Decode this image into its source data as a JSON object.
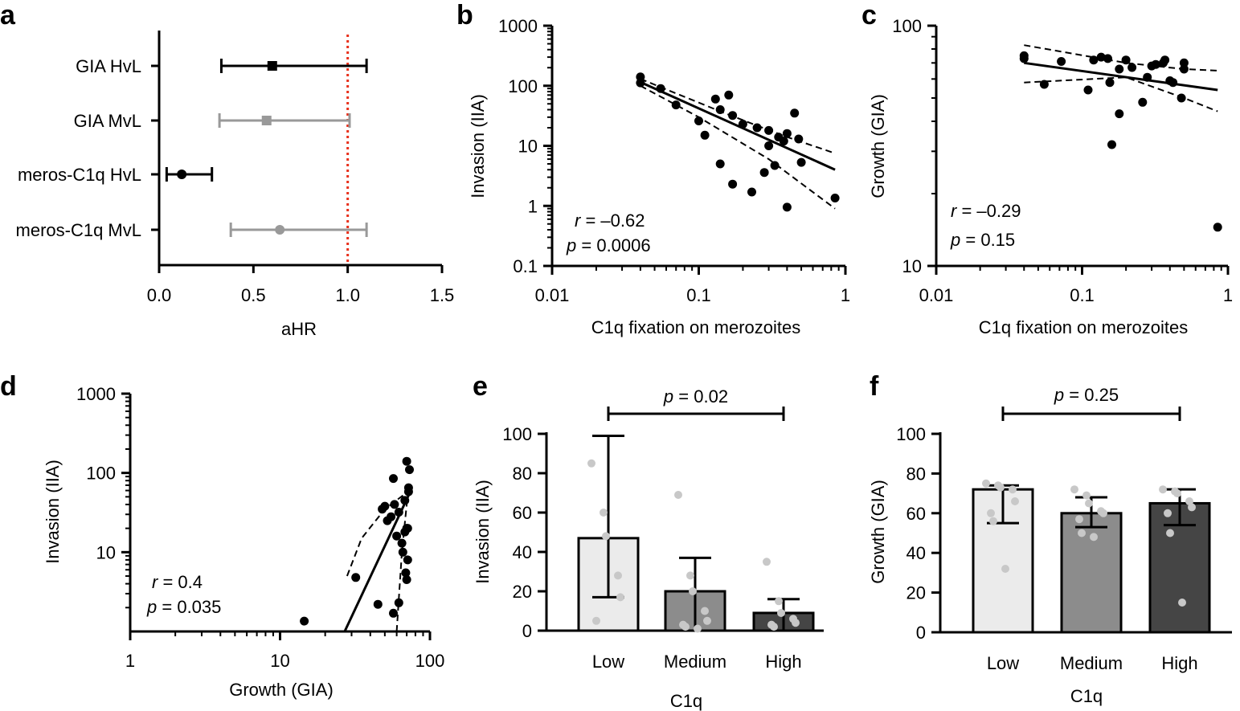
{
  "colors": {
    "black": "#000000",
    "grey": "#999999",
    "ref_line": "#e8301c",
    "bar_low": "#ebebeb",
    "bar_medium": "#8c8c8c",
    "bar_high": "#454545",
    "dot_light": "#c8c8c8"
  },
  "chart_data": [
    {
      "panel": "a",
      "type": "forest",
      "xlabel": "aHR",
      "xlim": [
        0,
        1.5
      ],
      "xticks": [
        "0.0",
        "0.5",
        "1.0",
        "1.5"
      ],
      "reference_line": 1.0,
      "rows": [
        {
          "label": "GIA HvL",
          "estimate": 0.6,
          "lower": 0.33,
          "upper": 1.1,
          "color": "black",
          "marker": "square"
        },
        {
          "label": "GIA MvL",
          "estimate": 0.57,
          "lower": 0.32,
          "upper": 1.01,
          "color": "grey",
          "marker": "square"
        },
        {
          "label": "meros-C1q HvL",
          "estimate": 0.12,
          "lower": 0.04,
          "upper": 0.28,
          "color": "black",
          "marker": "circle"
        },
        {
          "label": "meros-C1q MvL",
          "estimate": 0.64,
          "lower": 0.38,
          "upper": 1.1,
          "color": "grey",
          "marker": "circle"
        }
      ]
    },
    {
      "panel": "b",
      "type": "scatter",
      "xscale": "log",
      "yscale": "log",
      "xlabel": "C1q fixation on merozoites",
      "ylabel": "Invasion (IIA)",
      "xlim": [
        0.01,
        1
      ],
      "ylim": [
        0.1,
        1000
      ],
      "xticks": [
        {
          "v": 0.01,
          "t": "0.01"
        },
        {
          "v": 0.1,
          "t": "0.1"
        },
        {
          "v": 1,
          "t": "1"
        }
      ],
      "yticks": [
        {
          "v": 0.1,
          "t": "0.1"
        },
        {
          "v": 1,
          "t": "1"
        },
        {
          "v": 10,
          "t": "10"
        },
        {
          "v": 100,
          "t": "100"
        },
        {
          "v": 1000,
          "t": "1000"
        }
      ],
      "r_text": "–0.62",
      "p_text": "0.0006",
      "points": [
        [
          0.04,
          140
        ],
        [
          0.04,
          112
        ],
        [
          0.055,
          90
        ],
        [
          0.07,
          48
        ],
        [
          0.1,
          26
        ],
        [
          0.11,
          15
        ],
        [
          0.13,
          60
        ],
        [
          0.14,
          40
        ],
        [
          0.16,
          70
        ],
        [
          0.17,
          32
        ],
        [
          0.2,
          23
        ],
        [
          0.25,
          20
        ],
        [
          0.3,
          18
        ],
        [
          0.35,
          14
        ],
        [
          0.38,
          12
        ],
        [
          0.4,
          16
        ],
        [
          0.45,
          35
        ],
        [
          0.48,
          13
        ],
        [
          0.14,
          5
        ],
        [
          0.17,
          2.3
        ],
        [
          0.23,
          1.7
        ],
        [
          0.28,
          3.6
        ],
        [
          0.33,
          4.7
        ],
        [
          0.4,
          0.95
        ],
        [
          0.5,
          5.3
        ],
        [
          0.85,
          1.35
        ],
        [
          0.3,
          10
        ]
      ],
      "fit": [
        [
          0.04,
          115
        ],
        [
          0.85,
          4
        ]
      ],
      "ci_upper": [
        [
          0.04,
          130
        ],
        [
          0.15,
          35
        ],
        [
          0.4,
          14
        ],
        [
          0.85,
          7.5
        ]
      ],
      "ci_lower": [
        [
          0.04,
          100
        ],
        [
          0.1,
          30
        ],
        [
          0.3,
          6
        ],
        [
          0.85,
          0.9
        ]
      ]
    },
    {
      "panel": "c",
      "type": "scatter",
      "xscale": "log",
      "yscale": "log",
      "xlabel": "C1q fixation on merozoites",
      "ylabel": "Growth (GIA)",
      "xlim": [
        0.01,
        1
      ],
      "ylim": [
        10,
        100
      ],
      "xticks": [
        {
          "v": 0.01,
          "t": "0.01"
        },
        {
          "v": 0.1,
          "t": "0.1"
        },
        {
          "v": 1,
          "t": "1"
        }
      ],
      "yticks": [
        {
          "v": 10,
          "t": "10"
        },
        {
          "v": 100,
          "t": "100"
        }
      ],
      "r_text": "–0.29",
      "p_text": "0.15",
      "points": [
        [
          0.04,
          75
        ],
        [
          0.04,
          73
        ],
        [
          0.055,
          57
        ],
        [
          0.072,
          71
        ],
        [
          0.11,
          54
        ],
        [
          0.12,
          72
        ],
        [
          0.135,
          74
        ],
        [
          0.15,
          73
        ],
        [
          0.155,
          58
        ],
        [
          0.18,
          66
        ],
        [
          0.2,
          72
        ],
        [
          0.22,
          67
        ],
        [
          0.28,
          61
        ],
        [
          0.3,
          68
        ],
        [
          0.32,
          69
        ],
        [
          0.36,
          70
        ],
        [
          0.37,
          72
        ],
        [
          0.4,
          59
        ],
        [
          0.42,
          58
        ],
        [
          0.48,
          50
        ],
        [
          0.5,
          70
        ],
        [
          0.5,
          66
        ],
        [
          0.26,
          48
        ],
        [
          0.18,
          43
        ],
        [
          0.16,
          32
        ],
        [
          0.85,
          14.5
        ]
      ],
      "fit": [
        [
          0.04,
          70
        ],
        [
          0.85,
          54
        ]
      ],
      "ci_upper": [
        [
          0.04,
          83
        ],
        [
          0.2,
          70
        ],
        [
          0.5,
          66
        ],
        [
          0.85,
          65
        ]
      ],
      "ci_lower": [
        [
          0.04,
          58
        ],
        [
          0.2,
          61
        ],
        [
          0.5,
          50
        ],
        [
          0.85,
          44
        ]
      ]
    },
    {
      "panel": "d",
      "type": "scatter",
      "xscale": "log",
      "yscale": "log",
      "xlabel": "Growth (GIA)",
      "ylabel": "Invasion (IIA)",
      "xlim": [
        1,
        100
      ],
      "ylim": [
        1,
        1000
      ],
      "xticks": [
        {
          "v": 1,
          "t": "1"
        },
        {
          "v": 10,
          "t": "10"
        },
        {
          "v": 100,
          "t": "100"
        }
      ],
      "yticks": [
        {
          "v": 10,
          "t": "10"
        },
        {
          "v": 100,
          "t": "100"
        },
        {
          "v": 1000,
          "t": "1000"
        }
      ],
      "r_text": "0.4",
      "p_text": "0.035",
      "points": [
        [
          14.5,
          1.35
        ],
        [
          32,
          4.8
        ],
        [
          45,
          2.2
        ],
        [
          48,
          35
        ],
        [
          50,
          38
        ],
        [
          52,
          25
        ],
        [
          55,
          28
        ],
        [
          57,
          85
        ],
        [
          57,
          1.7
        ],
        [
          58,
          40
        ],
        [
          60,
          16
        ],
        [
          62,
          32
        ],
        [
          62,
          2.3
        ],
        [
          65,
          13
        ],
        [
          66,
          10
        ],
        [
          68,
          18
        ],
        [
          68,
          45
        ],
        [
          69,
          5.5
        ],
        [
          70,
          4.5
        ],
        [
          70,
          140
        ],
        [
          71,
          20
        ],
        [
          71,
          8
        ],
        [
          72,
          65
        ],
        [
          72,
          58
        ],
        [
          73,
          110
        ],
        [
          70,
          20
        ]
      ],
      "fit": [
        [
          27,
          1
        ],
        [
          73,
          55
        ]
      ],
      "ci_upper": [
        [
          28,
          5
        ],
        [
          35,
          15
        ],
        [
          50,
          35
        ],
        [
          73,
          60
        ]
      ],
      "ci_lower": [
        [
          60,
          1
        ],
        [
          65,
          10
        ],
        [
          70,
          40
        ],
        [
          73,
          70
        ]
      ]
    },
    {
      "panel": "e",
      "type": "bar",
      "xlabel": "C1q",
      "ylabel": "Invasion (IIA)",
      "ylim": [
        0,
        100
      ],
      "yticks": [
        "0",
        "20",
        "40",
        "60",
        "80",
        "100"
      ],
      "categories": [
        "Low",
        "Medium",
        "High"
      ],
      "values": [
        47,
        20,
        9
      ],
      "err_low": [
        17,
        0,
        0
      ],
      "err_high": [
        99,
        37,
        16
      ],
      "points": [
        [
          85,
          60,
          48,
          28,
          17,
          5
        ],
        [
          69,
          28,
          20,
          10,
          5,
          3,
          2,
          1
        ],
        [
          35,
          15,
          9,
          6,
          4,
          3,
          2
        ]
      ],
      "pvalue": "0.02"
    },
    {
      "panel": "f",
      "type": "bar",
      "xlabel": "C1q",
      "ylabel": "Growth (GIA)",
      "ylim": [
        0,
        100
      ],
      "yticks": [
        "0",
        "20",
        "40",
        "60",
        "80",
        "100"
      ],
      "categories": [
        "Low",
        "Medium",
        "High"
      ],
      "values": [
        72,
        60,
        65
      ],
      "err_low": [
        55,
        53,
        54
      ],
      "err_high": [
        74,
        68,
        72
      ],
      "points": [
        [
          75,
          74,
          73,
          72,
          66,
          60,
          56,
          32
        ],
        [
          72,
          69,
          65,
          61,
          60,
          57,
          50,
          48
        ],
        [
          72,
          71,
          70,
          66,
          63,
          60,
          50,
          15
        ]
      ],
      "pvalue": "0.25"
    }
  ]
}
